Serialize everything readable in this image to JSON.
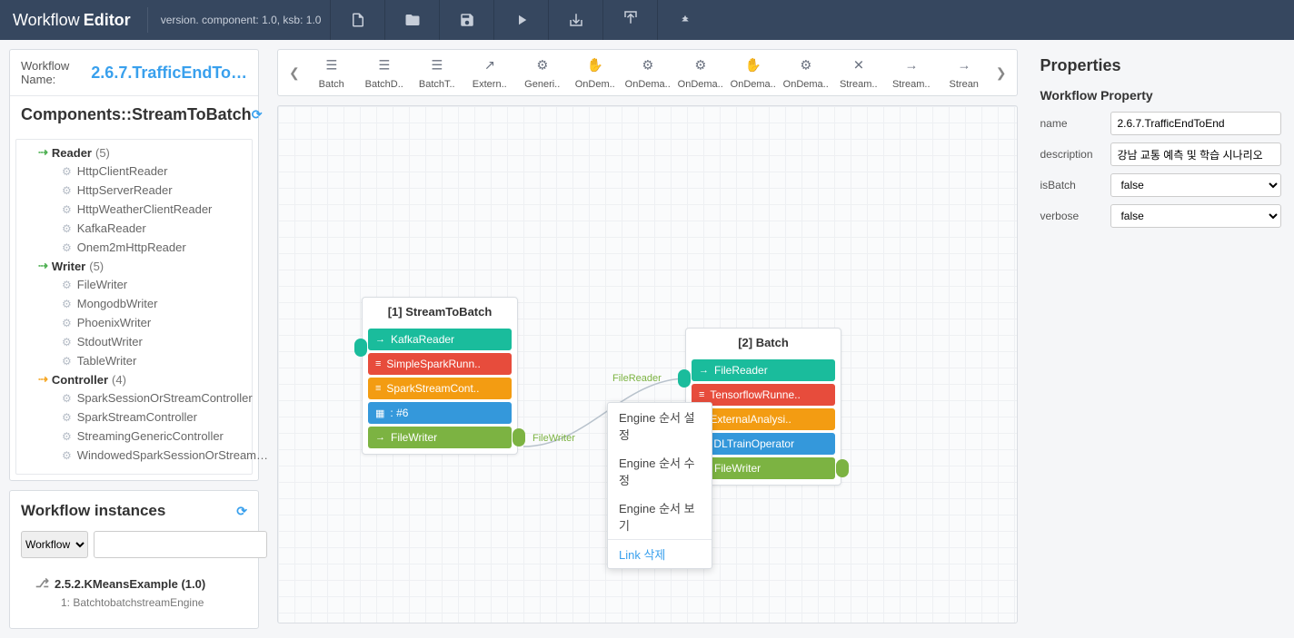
{
  "header": {
    "title_light": "Workflow",
    "title_bold": "Editor",
    "version_text": "version. component: 1.0, ksb: 1.0"
  },
  "left": {
    "wf_label": "Workflow Name:",
    "wf_name": "2.6.7.TrafficEndTo…",
    "components_title": "Components::StreamToBatch",
    "groups": [
      {
        "name": "Reader",
        "count": "(5)",
        "type": "reader",
        "items": [
          "HttpClientReader",
          "HttpServerReader",
          "HttpWeatherClientReader",
          "KafkaReader",
          "Onem2mHttpReader"
        ]
      },
      {
        "name": "Writer",
        "count": "(5)",
        "type": "writer",
        "items": [
          "FileWriter",
          "MongodbWriter",
          "PhoenixWriter",
          "StdoutWriter",
          "TableWriter"
        ]
      },
      {
        "name": "Controller",
        "count": "(4)",
        "type": "controller",
        "items": [
          "SparkSessionOrStreamController",
          "SparkStreamController",
          "StreamingGenericController",
          "WindowedSparkSessionOrStream…"
        ]
      }
    ],
    "instances_title": "Workflow instances",
    "search_select": "Workflow I",
    "inst_name": "2.5.2.KMeansExample (1.0)",
    "inst_sub": "1: BatchtobatchstreamEngine"
  },
  "palette": [
    "Batch",
    "BatchD..",
    "BatchT..",
    "Extern..",
    "Generi..",
    "OnDem..",
    "OnDema..",
    "OnDema..",
    "OnDema..",
    "OnDema..",
    "Stream..",
    "Stream..",
    "Strean"
  ],
  "nodes": {
    "n1": {
      "title": "[1] StreamToBatch",
      "rows": [
        {
          "label": "KafkaReader",
          "color": "c-teal",
          "icon": "→"
        },
        {
          "label": "SimpleSparkRunn..",
          "color": "c-red",
          "icon": "≡"
        },
        {
          "label": "SparkStreamCont..",
          "color": "c-orange",
          "icon": "≡"
        },
        {
          "label": ": #6",
          "color": "c-blue",
          "icon": "▦"
        },
        {
          "label": "FileWriter",
          "color": "c-green",
          "icon": "→"
        }
      ]
    },
    "n2": {
      "title": "[2] Batch",
      "rows": [
        {
          "label": "FileReader",
          "color": "c-teal",
          "icon": "→"
        },
        {
          "label": "TensorflowRunne..",
          "color": "c-red",
          "icon": "≡"
        },
        {
          "label": "ExternalAnalysi..",
          "color": "c-orange",
          "icon": "≡"
        },
        {
          "label": "DLTrainOperator",
          "color": "c-blue",
          "icon": "▦"
        },
        {
          "label": "FileWriter",
          "color": "c-green",
          "icon": "→"
        }
      ]
    }
  },
  "edge_labels": {
    "out": "FileWriter",
    "in": "FileReader"
  },
  "context_menu": [
    "Engine 순서 설정",
    "Engine 순서 수정",
    "Engine 순서 보기",
    "Link 삭제"
  ],
  "props": {
    "title": "Properties",
    "section": "Workflow Property",
    "name_label": "name",
    "name_val": "2.6.7.TrafficEndToEnd",
    "desc_label": "description",
    "desc_val": "강남 교통 예측 및 학습 시나리오",
    "isBatch_label": "isBatch",
    "isBatch_val": "false",
    "verbose_label": "verbose",
    "verbose_val": "false"
  }
}
